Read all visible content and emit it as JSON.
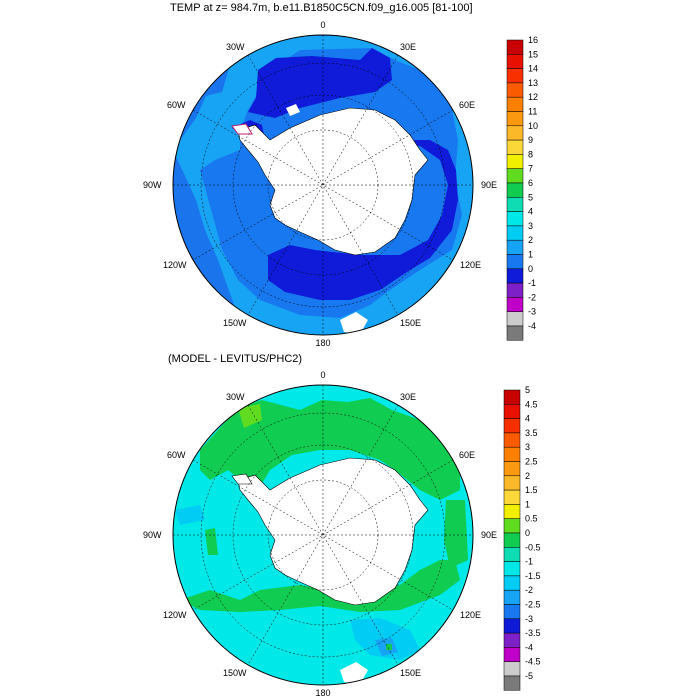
{
  "panels": [
    {
      "title": "TEMP at z= 984.7m, b.e11.B1850C5CN.f09_g16.005 [81-100]",
      "lon_labels": {
        "n": "0",
        "ne": "30E",
        "e": "60E",
        "ee": "90E",
        "se": "120E",
        "sse": "150E",
        "s": "180",
        "ssw": "150W",
        "sw": "120W",
        "ww": "90W",
        "w": "60W",
        "nw": "30W"
      },
      "colorbar": {
        "labels": [
          "16",
          "15",
          "14",
          "13",
          "12",
          "11",
          "10",
          "9",
          "8",
          "7",
          "6",
          "5",
          "4",
          "3",
          "2",
          "1",
          "0",
          "-1",
          "-2",
          "-3",
          "-4"
        ],
        "colors": [
          "#c80000",
          "#e81000",
          "#f83000",
          "#fa5a00",
          "#fb8000",
          "#fb9a10",
          "#fbb828",
          "#fbd838",
          "#f0f000",
          "#60dc20",
          "#10cc50",
          "#10dcb4",
          "#00e8e8",
          "#00ccf4",
          "#18a4f4",
          "#1878f0",
          "#0f1bd8",
          "#7e20c8",
          "#c000c8",
          "#cccccc",
          "#7a7a7a"
        ]
      }
    },
    {
      "title": "(MODEL - LEVITUS/PHC2)",
      "lon_labels": {
        "n": "0",
        "ne": "30E",
        "e": "60E",
        "ee": "90E",
        "se": "120E",
        "sse": "150E",
        "s": "180",
        "ssw": "150W",
        "sw": "120W",
        "ww": "90W",
        "w": "60W",
        "nw": "30W"
      },
      "colorbar": {
        "labels": [
          "5",
          "4.5",
          "4",
          "3.5",
          "3",
          "2.5",
          "2",
          "1.5",
          "1",
          "0.5",
          "0",
          "-0.5",
          "-1",
          "-1.5",
          "-2",
          "-2.5",
          "-3",
          "-3.5",
          "-4",
          "-4.5",
          "-5"
        ],
        "colors": [
          "#c80000",
          "#e81000",
          "#f83000",
          "#fa5a00",
          "#fb8000",
          "#fb9a10",
          "#fbb828",
          "#fbd838",
          "#f0f000",
          "#60dc20",
          "#10cc50",
          "#10dcb4",
          "#00e8e8",
          "#00ccf4",
          "#18a4f4",
          "#1878f0",
          "#0f1bd8",
          "#7e20c8",
          "#c000c8",
          "#cccccc",
          "#7a7a7a"
        ]
      }
    }
  ]
}
